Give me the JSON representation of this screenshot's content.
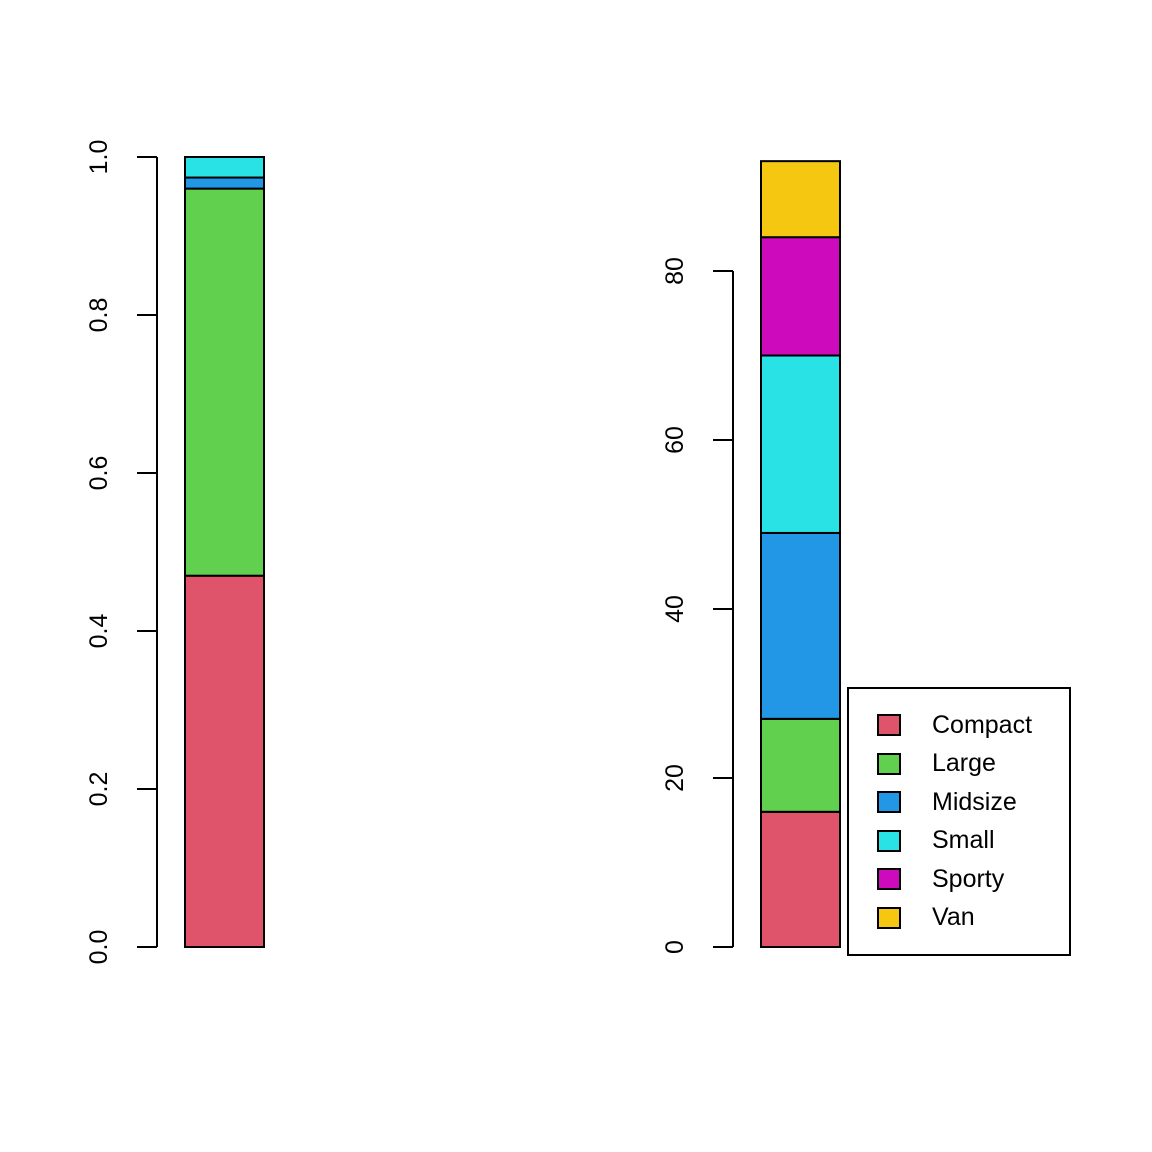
{
  "figure": {
    "background_color": "#ffffff",
    "axis_color": "#000000",
    "bar_border_color": "#000000"
  },
  "chart_data": [
    {
      "id": "proportions",
      "type": "bar",
      "subtype": "stacked-vertical-single-bar",
      "title": "",
      "xlabel": "",
      "ylabel": "",
      "categories": [
        "Compact",
        "Large",
        "Midsize",
        "Small",
        "Sporty",
        "Van"
      ],
      "values": [
        0.47,
        0.49,
        0.014,
        0.026,
        0,
        0
      ],
      "colors": [
        "#DF536B",
        "#61D04F",
        "#2297E6",
        "#28E2E5",
        "#CD0BBC",
        "#F5C710"
      ],
      "ylim": [
        0,
        1.0
      ],
      "yticks": [
        0,
        0.2,
        0.4,
        0.6,
        0.8,
        1.0
      ],
      "ytick_labels": [
        "0.0",
        "0.2",
        "0.4",
        "0.6",
        "0.8",
        "1.0"
      ],
      "grid": false,
      "tick_label_rotation_deg": -90
    },
    {
      "id": "counts",
      "type": "bar",
      "subtype": "stacked-vertical-single-bar",
      "title": "",
      "xlabel": "",
      "ylabel": "",
      "categories": [
        "Compact",
        "Large",
        "Midsize",
        "Small",
        "Sporty",
        "Van"
      ],
      "values": [
        16,
        11,
        22,
        21,
        14,
        9
      ],
      "total": 93,
      "colors": [
        "#DF536B",
        "#61D04F",
        "#2297E6",
        "#28E2E5",
        "#CD0BBC",
        "#F5C710"
      ],
      "ylim": [
        0,
        93
      ],
      "yticks": [
        0,
        20,
        40,
        60,
        80
      ],
      "ytick_labels": [
        "0",
        "20",
        "40",
        "60",
        "80"
      ],
      "grid": false,
      "tick_label_rotation_deg": -90
    }
  ],
  "legend": {
    "position": "right-of-counts-bar",
    "border_color": "#000000",
    "entries": [
      {
        "label": "Compact",
        "color": "#DF536B"
      },
      {
        "label": "Large",
        "color": "#61D04F"
      },
      {
        "label": "Midsize",
        "color": "#2297E6"
      },
      {
        "label": "Small",
        "color": "#28E2E5"
      },
      {
        "label": "Sporty",
        "color": "#CD0BBC"
      },
      {
        "label": "Van",
        "color": "#F5C710"
      }
    ]
  }
}
